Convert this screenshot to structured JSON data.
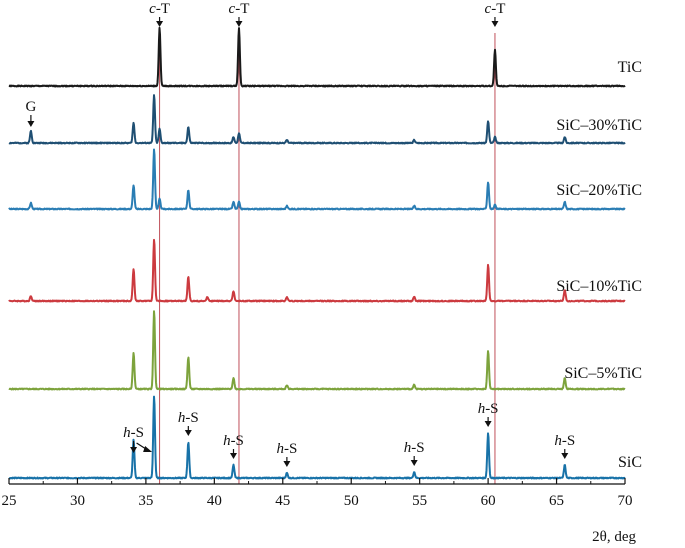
{
  "chart_data": {
    "type": "line",
    "xlabel": "2θ, deg",
    "ylabel": "",
    "xlim": [
      25,
      70
    ],
    "xticks": [
      "25",
      "30",
      "35",
      "40",
      "45",
      "50",
      "55",
      "60",
      "65",
      "70"
    ],
    "grid": false,
    "legend": "inline labels at right",
    "reference_lines_2theta": [
      36.0,
      41.8,
      60.5
    ],
    "reference_line_color": "#c0505a",
    "series": [
      {
        "name": "TiC",
        "color": "#1a1a1a",
        "peaks": [
          [
            36.0,
            58
          ],
          [
            41.8,
            58
          ],
          [
            60.5,
            36
          ]
        ]
      },
      {
        "name": "SiC–30%TiC",
        "color": "#1f4f73",
        "peaks": [
          [
            26.6,
            12
          ],
          [
            34.1,
            20
          ],
          [
            35.6,
            48
          ],
          [
            36.0,
            14
          ],
          [
            38.1,
            16
          ],
          [
            41.4,
            6
          ],
          [
            41.8,
            10
          ],
          [
            45.3,
            3
          ],
          [
            54.6,
            3
          ],
          [
            60.0,
            22
          ],
          [
            60.5,
            6
          ],
          [
            65.6,
            6
          ]
        ]
      },
      {
        "name": "SiC–20%TiC",
        "color": "#2a7db4",
        "peaks": [
          [
            26.6,
            6
          ],
          [
            34.1,
            24
          ],
          [
            35.6,
            60
          ],
          [
            36.0,
            10
          ],
          [
            38.1,
            19
          ],
          [
            41.4,
            7
          ],
          [
            41.8,
            7
          ],
          [
            45.3,
            3
          ],
          [
            54.6,
            3
          ],
          [
            60.0,
            27
          ],
          [
            60.5,
            4
          ],
          [
            65.6,
            7
          ]
        ]
      },
      {
        "name": "SiC–10%TiC",
        "color": "#cc3a3f",
        "peaks": [
          [
            26.6,
            5
          ],
          [
            34.1,
            32
          ],
          [
            35.6,
            62
          ],
          [
            38.1,
            24
          ],
          [
            39.5,
            4
          ],
          [
            41.4,
            10
          ],
          [
            45.3,
            4
          ],
          [
            54.6,
            4
          ],
          [
            60.0,
            36
          ],
          [
            65.6,
            11
          ]
        ]
      },
      {
        "name": "SiC–5%TiC",
        "color": "#7da33c",
        "peaks": [
          [
            34.1,
            36
          ],
          [
            35.6,
            78
          ],
          [
            38.1,
            32
          ],
          [
            41.4,
            11
          ],
          [
            45.3,
            4
          ],
          [
            54.6,
            4
          ],
          [
            60.0,
            38
          ],
          [
            65.6,
            11
          ]
        ]
      },
      {
        "name": "SiC",
        "color": "#1872a8",
        "peaks": [
          [
            34.1,
            38
          ],
          [
            35.6,
            82
          ],
          [
            38.1,
            36
          ],
          [
            41.4,
            13
          ],
          [
            45.3,
            5
          ],
          [
            54.6,
            6
          ],
          [
            60.0,
            45
          ],
          [
            65.6,
            13
          ]
        ]
      }
    ],
    "annotations": [
      {
        "prefix": "c",
        "suffix": "-T",
        "x": 36.0,
        "series": "TiC"
      },
      {
        "prefix": "c",
        "suffix": "-T",
        "x": 41.8,
        "series": "TiC"
      },
      {
        "prefix": "c",
        "suffix": "-T",
        "x": 60.5,
        "series": "TiC"
      },
      {
        "prefix": "",
        "suffix": "G",
        "x": 26.6,
        "series": "SiC–30%TiC"
      },
      {
        "prefix": "h",
        "suffix": "-S",
        "x": 34.1,
        "series": "SiC",
        "double_arrow_to": 35.6
      },
      {
        "prefix": "h",
        "suffix": "-S",
        "x": 38.1,
        "series": "SiC"
      },
      {
        "prefix": "h",
        "suffix": "-S",
        "x": 41.4,
        "series": "SiC"
      },
      {
        "prefix": "h",
        "suffix": "-S",
        "x": 45.3,
        "series": "SiC"
      },
      {
        "prefix": "h",
        "suffix": "-S",
        "x": 54.6,
        "series": "SiC"
      },
      {
        "prefix": "h",
        "suffix": "-S",
        "x": 60.0,
        "series": "SiC"
      },
      {
        "prefix": "h",
        "suffix": "-S",
        "x": 65.6,
        "series": "SiC"
      }
    ]
  }
}
